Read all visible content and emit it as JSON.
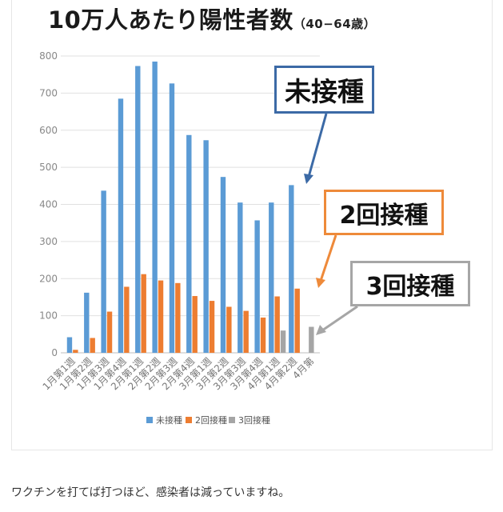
{
  "title": "10万人あたり陽性者数",
  "subtitle": "（40−64歳）",
  "caption": "ワクチンを打てば打つほど、感染者は減っていますね。",
  "callouts": {
    "unvaccinated": "未接種",
    "dose2": "2回接種",
    "dose3": "3回接種"
  },
  "colors": {
    "unvaccinated": "#5b9bd5",
    "dose2": "#ed7d31",
    "dose3": "#a5a5a5",
    "callout_unvaccinated_border": "#3c6aa6",
    "callout_dose2_border": "#ee8a3a",
    "callout_dose3_border": "#a6a6a6"
  },
  "chart_data": {
    "type": "bar",
    "title": "10万人あたり陽性者数（40−64歳）",
    "xlabel": "",
    "ylabel": "",
    "ylim": [
      0,
      800
    ],
    "yticks": [
      0,
      100,
      200,
      300,
      400,
      500,
      600,
      700,
      800
    ],
    "grid": true,
    "legend_position": "bottom",
    "categories": [
      "1月第1週",
      "1月第2週",
      "1月第3週",
      "1月第4週",
      "2月第1週",
      "2月第2週",
      "2月第3週",
      "2月第4週",
      "3月第1週",
      "3月第2週",
      "3月第3週",
      "3月第4週",
      "4月第1週",
      "4月第2週",
      "4月第"
    ],
    "series": [
      {
        "name": "未接種",
        "values": [
          42,
          162,
          437,
          685,
          773,
          785,
          726,
          587,
          573,
          474,
          405,
          357,
          405,
          452,
          null
        ]
      },
      {
        "name": "2回接種",
        "values": [
          8,
          40,
          111,
          178,
          212,
          195,
          188,
          153,
          140,
          124,
          113,
          95,
          152,
          173,
          null
        ]
      },
      {
        "name": "3回接種",
        "values": [
          null,
          null,
          null,
          null,
          null,
          null,
          null,
          null,
          null,
          null,
          null,
          null,
          60,
          null,
          70
        ]
      }
    ]
  }
}
